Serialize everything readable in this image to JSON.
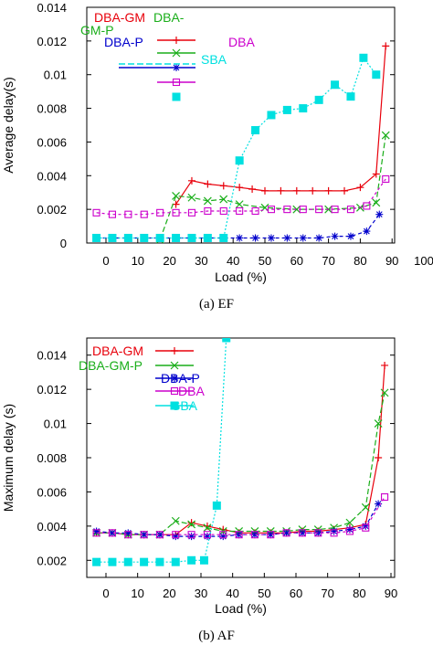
{
  "chart_data": [
    {
      "type": "line",
      "caption": "(a)  EF",
      "xlabel": "Load (%)",
      "ylabel": "Average delay(s)",
      "xticks": [
        "0",
        "10",
        "20",
        "30",
        "40",
        "50",
        "60",
        "70",
        "80",
        "90",
        "100"
      ],
      "yticks": [
        "0",
        "0.002",
        "0.004",
        "0.006",
        "0.008",
        "0.01",
        "0.012",
        "0.014"
      ],
      "ylim": [
        0,
        0.014
      ],
      "series": [
        {
          "name": "DBA-GM",
          "color": "#e8000b",
          "marker": "plus",
          "x": [
            22,
            27,
            32,
            37,
            42,
            46,
            50,
            55,
            60,
            65,
            70,
            75,
            80,
            85,
            88
          ],
          "y": [
            0.0023,
            0.0037,
            0.0035,
            0.0034,
            0.0033,
            0.0032,
            0.0031,
            0.0031,
            0.0031,
            0.0031,
            0.0031,
            0.0031,
            0.0033,
            0.0041,
            0.0117
          ]
        },
        {
          "name": "DBA-GM-P",
          "color": "#1aae1a",
          "marker": "cross",
          "x": [
            17,
            22,
            27,
            32,
            37,
            42,
            50,
            60,
            70,
            80,
            85,
            88
          ],
          "y": [
            0.0002,
            0.0028,
            0.0027,
            0.0025,
            0.0026,
            0.0023,
            0.0021,
            0.002,
            0.002,
            0.0021,
            0.0024,
            0.0064
          ]
        },
        {
          "name": "DBA-P",
          "color": "#0000cc",
          "marker": "asterisk",
          "x": [
            -3,
            2,
            7,
            12,
            17,
            22,
            27,
            32,
            37,
            42,
            47,
            52,
            57,
            62,
            67,
            72,
            77,
            82,
            86
          ],
          "y": [
            0.0003,
            0.0003,
            0.0003,
            0.0003,
            0.0003,
            0.0003,
            0.0003,
            0.0003,
            0.0003,
            0.0003,
            0.0003,
            0.0003,
            0.0003,
            0.0003,
            0.0003,
            0.0004,
            0.0004,
            0.0007,
            0.0017
          ]
        },
        {
          "name": "DBA",
          "color": "#cc00cc",
          "marker": "square",
          "x": [
            -3,
            2,
            7,
            12,
            17,
            22,
            27,
            32,
            37,
            42,
            47,
            52,
            57,
            62,
            67,
            72,
            77,
            82,
            88
          ],
          "y": [
            0.0018,
            0.0017,
            0.0017,
            0.0017,
            0.0018,
            0.0018,
            0.0018,
            0.0019,
            0.0019,
            0.0019,
            0.0019,
            0.002,
            0.002,
            0.002,
            0.002,
            0.002,
            0.002,
            0.0022,
            0.0038
          ]
        },
        {
          "name": "SBA",
          "color": "#00e0e0",
          "marker": "filledsquare",
          "x": [
            -3,
            2,
            7,
            12,
            17,
            22,
            27,
            32,
            37,
            42,
            47,
            52,
            57,
            62,
            67,
            72,
            77,
            81,
            85
          ],
          "y": [
            0.0003,
            0.0003,
            0.0003,
            0.0003,
            0.0003,
            0.0003,
            0.0003,
            0.0003,
            0.0003,
            0.0049,
            0.0067,
            0.0076,
            0.0079,
            0.008,
            0.0085,
            0.0094,
            0.0087,
            0.011,
            0.01
          ]
        }
      ]
    },
    {
      "type": "line",
      "caption": "(b)  AF",
      "xlabel": "Load (%)",
      "ylabel": "Maximum delay (s)",
      "xticks": [
        "0",
        "10",
        "20",
        "30",
        "40",
        "50",
        "60",
        "70",
        "80",
        "90"
      ],
      "yticks": [
        "0.002",
        "0.004",
        "0.006",
        "0.008",
        "0.01",
        "0.012",
        "0.014"
      ],
      "ylim": [
        0.001,
        0.015
      ],
      "series": [
        {
          "name": "DBA-GM",
          "color": "#e8000b",
          "marker": "plus",
          "x": [
            -3,
            2,
            7,
            12,
            17,
            22,
            27,
            32,
            37,
            42,
            47,
            52,
            57,
            62,
            67,
            72,
            77,
            82,
            86,
            88
          ],
          "y": [
            0.0036,
            0.0036,
            0.0035,
            0.0035,
            0.0035,
            0.0035,
            0.0042,
            0.004,
            0.0038,
            0.0036,
            0.0036,
            0.0036,
            0.0036,
            0.0037,
            0.0037,
            0.0038,
            0.0039,
            0.0041,
            0.008,
            0.0134
          ]
        },
        {
          "name": "DBA-GM-P",
          "color": "#1aae1a",
          "marker": "cross",
          "x": [
            -3,
            2,
            7,
            12,
            17,
            22,
            27,
            32,
            37,
            42,
            47,
            52,
            57,
            62,
            67,
            72,
            77,
            82,
            86,
            88
          ],
          "y": [
            0.0036,
            0.0036,
            0.0035,
            0.0035,
            0.0035,
            0.0043,
            0.0041,
            0.0039,
            0.0037,
            0.0037,
            0.0037,
            0.0037,
            0.0037,
            0.0038,
            0.0038,
            0.0039,
            0.0042,
            0.0051,
            0.01,
            0.0118
          ]
        },
        {
          "name": "DBA-P",
          "color": "#0000cc",
          "marker": "asterisk",
          "x": [
            -3,
            2,
            7,
            12,
            17,
            22,
            27,
            32,
            37,
            42,
            47,
            52,
            57,
            62,
            67,
            72,
            77,
            82,
            86
          ],
          "y": [
            0.0037,
            0.0036,
            0.0036,
            0.0035,
            0.0035,
            0.0034,
            0.0034,
            0.0034,
            0.0034,
            0.0035,
            0.0035,
            0.0035,
            0.0036,
            0.0036,
            0.0036,
            0.0037,
            0.0038,
            0.004,
            0.0053
          ]
        },
        {
          "name": "DBA",
          "color": "#cc00cc",
          "marker": "square",
          "x": [
            -3,
            2,
            7,
            12,
            17,
            22,
            27,
            32,
            37,
            42,
            47,
            52,
            57,
            62,
            67,
            72,
            77,
            82,
            88
          ],
          "y": [
            0.0036,
            0.0036,
            0.0035,
            0.0035,
            0.0035,
            0.0035,
            0.0035,
            0.0035,
            0.0035,
            0.0035,
            0.0035,
            0.0035,
            0.0036,
            0.0036,
            0.0036,
            0.0036,
            0.0037,
            0.0039,
            0.0057
          ]
        },
        {
          "name": "SBA",
          "color": "#00e0e0",
          "marker": "filledsquare",
          "x": [
            -3,
            2,
            7,
            12,
            17,
            22,
            27,
            31,
            35,
            38
          ],
          "y": [
            0.0019,
            0.0019,
            0.0019,
            0.0019,
            0.0019,
            0.0019,
            0.002,
            0.002,
            0.0052,
            0.015
          ]
        }
      ]
    }
  ]
}
